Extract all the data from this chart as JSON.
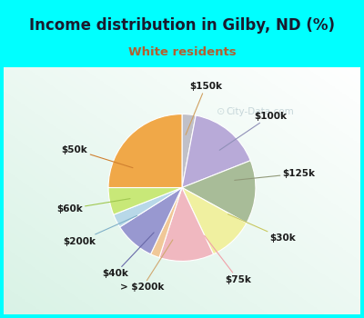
{
  "title": "Income distribution in Gilby, ND (%)",
  "subtitle": "White residents",
  "title_color": "#1a1a2e",
  "subtitle_color": "#b06030",
  "bg_cyan": "#00ffff",
  "chart_bg_color": "#e8f5ee",
  "watermark": "City-Data.com",
  "labels": [
    "$150k",
    "$100k",
    "$125k",
    "$30k",
    "$75k",
    "> $200k",
    "$40k",
    "$200k",
    "$60k",
    "$50k"
  ],
  "values": [
    3,
    16,
    14,
    10,
    12,
    2,
    9,
    3,
    6,
    25
  ],
  "colors": [
    "#c0c0c8",
    "#b8aad8",
    "#a8bc98",
    "#f0f0a0",
    "#f0b8c0",
    "#f0c898",
    "#9898d0",
    "#b8d8e8",
    "#c8e878",
    "#f0a848"
  ],
  "startangle": 90,
  "label_angles": [
    86,
    45,
    8,
    -30,
    -65,
    -100,
    -122,
    -148,
    -168,
    158
  ],
  "label_radii": [
    1.38,
    1.38,
    1.38,
    1.38,
    1.38,
    1.38,
    1.38,
    1.38,
    1.38,
    1.38
  ],
  "line_color": [
    "#d0a060",
    "#9090b8",
    "#909878",
    "#c8c860",
    "#f0a0a8",
    "#d0a870",
    "#6868a8",
    "#80b0c8",
    "#a0c850",
    "#d08030"
  ]
}
